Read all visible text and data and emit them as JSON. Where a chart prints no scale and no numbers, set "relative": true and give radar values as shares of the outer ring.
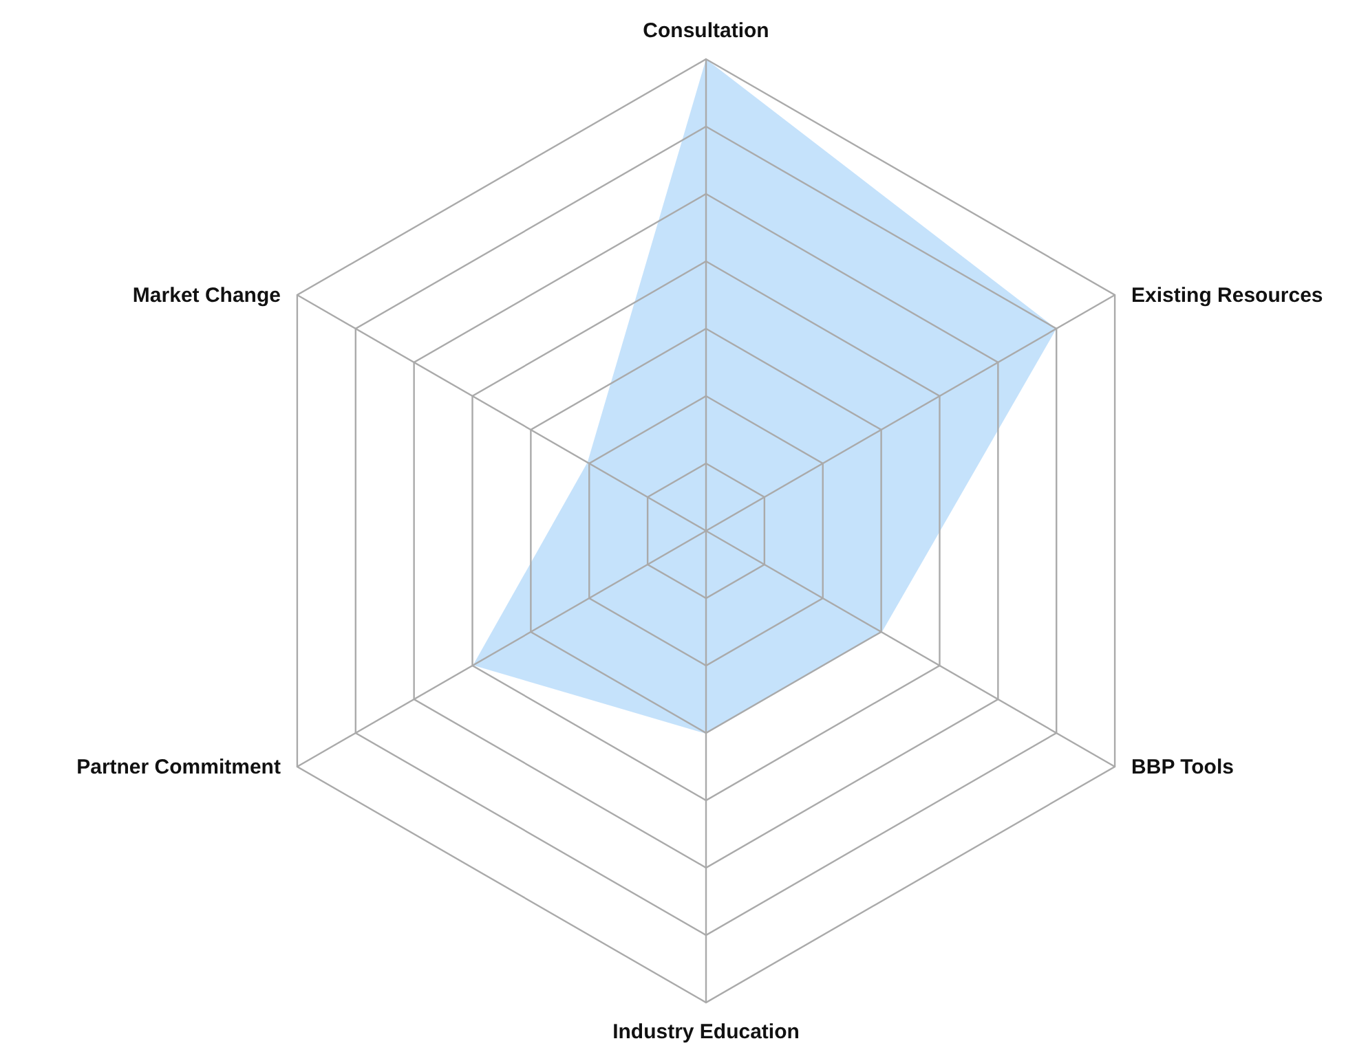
{
  "chart_data": {
    "type": "radar",
    "relative": true,
    "grid": true,
    "categories": [
      "Consultation",
      "Existing Resources",
      "BBP Tools",
      "Industry Education",
      "Partner Commitment",
      "Market Change"
    ],
    "series": [
      {
        "color": "#c2e0fb",
        "values": [
          1,
          0.857,
          0.43,
          0.43,
          0.57,
          0.29
        ]
      }
    ]
  }
}
